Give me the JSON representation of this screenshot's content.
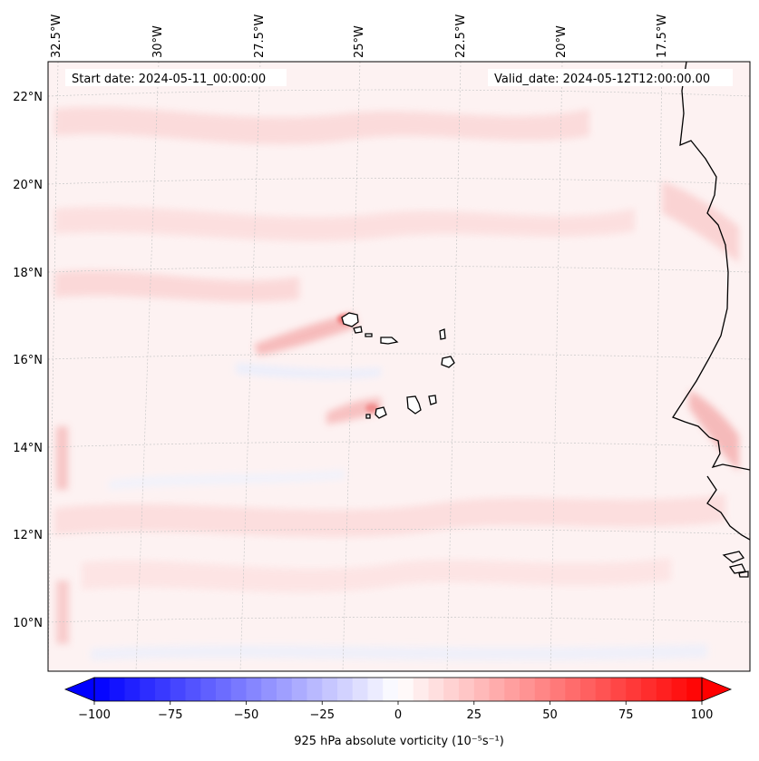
{
  "map": {
    "start_label": "Start date: 2024-05-11_00:00:00",
    "valid_label": "Valid_date: 2024-05-12T12:00:00.00",
    "lon_labels": [
      "32.5°W",
      "30°W",
      "27.5°W",
      "25°W",
      "22.5°W",
      "20°W",
      "17.5°W"
    ],
    "lat_labels": [
      "22°N",
      "20°N",
      "18°N",
      "16°N",
      "14°N",
      "12°N",
      "10°N"
    ],
    "field": "925 hPa absolute vorticity",
    "colormap": [
      "#0000ff",
      "#ffffff",
      "#ff0000"
    ]
  },
  "colorbar": {
    "label": "925 hPa absolute vorticity (10⁻⁵s⁻¹)",
    "ticks": [
      "−100",
      "−75",
      "−50",
      "−25",
      "0",
      "25",
      "50",
      "75",
      "100"
    ],
    "range": [
      -100,
      100
    ],
    "step": 5
  }
}
